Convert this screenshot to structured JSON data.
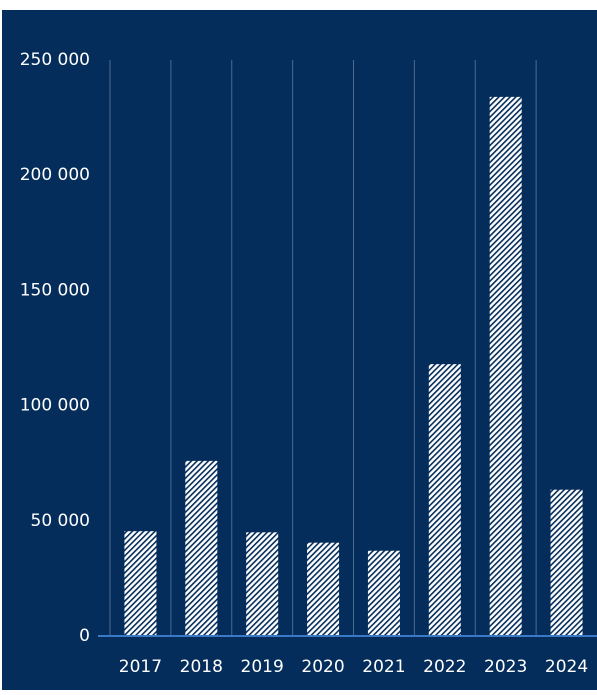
{
  "chart_data": {
    "type": "bar",
    "title": "",
    "xlabel": "",
    "ylabel": "",
    "categories": [
      "2017",
      "2018",
      "2019",
      "2020",
      "2021",
      "2022",
      "2023",
      "2024"
    ],
    "values": [
      45500,
      76000,
      45000,
      40500,
      37000,
      118000,
      234000,
      63500
    ],
    "ylim": [
      0,
      250000
    ],
    "yticks": [
      0,
      50000,
      100000,
      150000,
      200000,
      250000
    ],
    "ytick_labels": [
      "0",
      "50 000",
      "100 000",
      "150 000",
      "200 000",
      "250 000"
    ],
    "grid": "vertical",
    "legend": "none",
    "colors": {
      "background": "#052d5b",
      "bar_fill": "#ffffff",
      "bar_hatch": "#052d5b",
      "text": "#ffffff",
      "gridline": "#4d6a8f",
      "baseline": "#3a78c8"
    }
  }
}
